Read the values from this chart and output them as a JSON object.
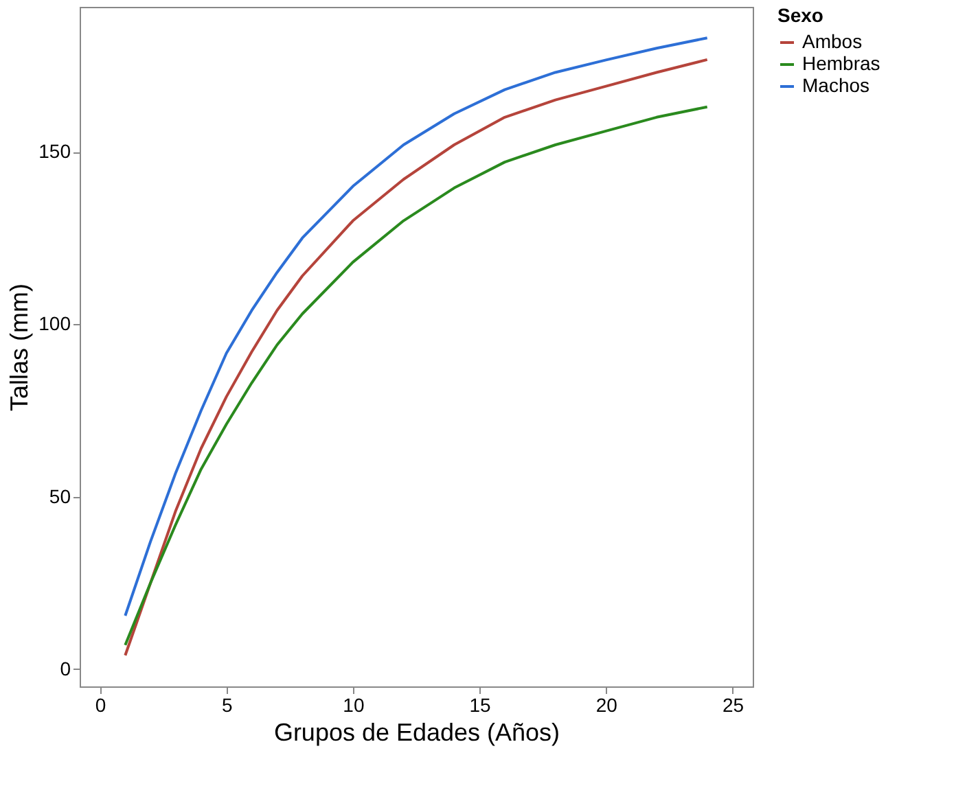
{
  "chart_data": {
    "type": "line",
    "xlabel": "Grupos de Edades (Años)",
    "ylabel": "Tallas (mm)",
    "legend_title": "Sexo",
    "legend": "right",
    "grid": false,
    "marker": "none",
    "line_style": "solid",
    "x": [
      1,
      2,
      3,
      4,
      5,
      6,
      7,
      8,
      10,
      12,
      14,
      16,
      18,
      20,
      22,
      24
    ],
    "xlim": [
      -0.8,
      25.8
    ],
    "xticks": [
      0,
      5,
      10,
      15,
      20,
      25
    ],
    "ylim": [
      -5,
      192
    ],
    "yticks": [
      0,
      50,
      100,
      150
    ],
    "series": [
      {
        "name": "Ambos",
        "color": "#b5443b",
        "values": [
          4,
          25,
          46,
          64,
          79,
          92,
          104,
          114,
          130,
          142,
          152,
          160,
          165,
          169,
          173,
          176.7
        ]
      },
      {
        "name": "Hembras",
        "color": "#2a8a1e",
        "values": [
          7,
          25,
          42,
          58,
          71,
          83,
          94,
          103,
          118,
          130,
          139.5,
          147,
          152,
          156,
          160,
          163
        ]
      },
      {
        "name": "Machos",
        "color": "#2d6fd6",
        "values": [
          15.5,
          37,
          57,
          75,
          91.6,
          104,
          115,
          125,
          140,
          152,
          161,
          168,
          173,
          176.6,
          180,
          183
        ]
      }
    ]
  }
}
